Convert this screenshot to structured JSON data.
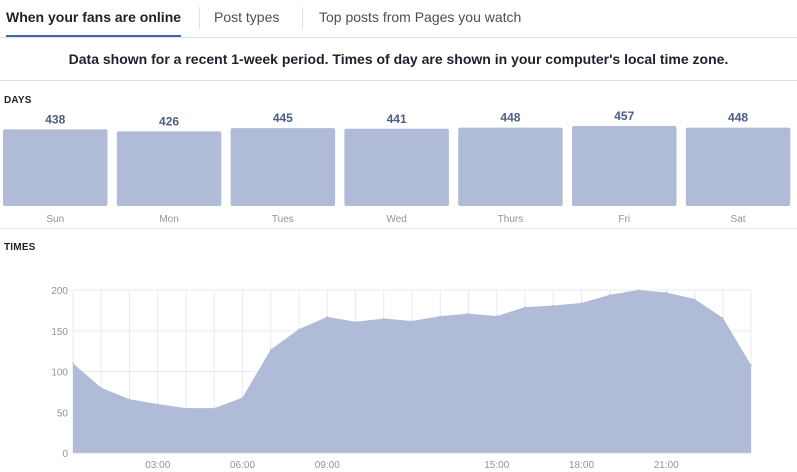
{
  "tabs": [
    {
      "label": "When your fans are online",
      "active": true
    },
    {
      "label": "Post types",
      "active": false
    },
    {
      "label": "Top posts from Pages you watch",
      "active": false
    }
  ],
  "notice": "Data shown for a recent 1-week period. Times of day are shown in your computer's local time zone.",
  "colors": {
    "bar": "#b0bbd8",
    "label": "#4b5d86",
    "tick": "#90949c",
    "grid": "#e9ebee",
    "accent": "#4267b2"
  },
  "chart_data": [
    {
      "type": "bar",
      "section_label": "DAYS",
      "categories": [
        "Sun",
        "Mon",
        "Tues",
        "Wed",
        "Thurs",
        "Fri",
        "Sat"
      ],
      "values": [
        438,
        426,
        445,
        441,
        448,
        457,
        448
      ]
    },
    {
      "type": "area",
      "section_label": "TIMES",
      "x": [
        0,
        1,
        2,
        3,
        4,
        5,
        6,
        7,
        8,
        9,
        10,
        11,
        12,
        13,
        14,
        15,
        16,
        17,
        18,
        19,
        20,
        21,
        22,
        23,
        24
      ],
      "values": [
        110,
        80,
        66,
        60,
        55,
        55,
        68,
        127,
        152,
        167,
        161,
        165,
        162,
        168,
        171,
        168,
        179,
        181,
        184,
        194,
        200,
        197,
        189,
        166,
        108
      ],
      "ylim": [
        0,
        200
      ],
      "yticks": [
        0,
        50,
        100,
        150,
        200
      ],
      "xtick_labels": [
        {
          "hour": 3,
          "label": "03:00"
        },
        {
          "hour": 6,
          "label": "06:00"
        },
        {
          "hour": 9,
          "label": "09:00"
        },
        {
          "hour": 15,
          "label": "15:00"
        },
        {
          "hour": 18,
          "label": "18:00"
        },
        {
          "hour": 21,
          "label": "21:00"
        }
      ]
    }
  ]
}
